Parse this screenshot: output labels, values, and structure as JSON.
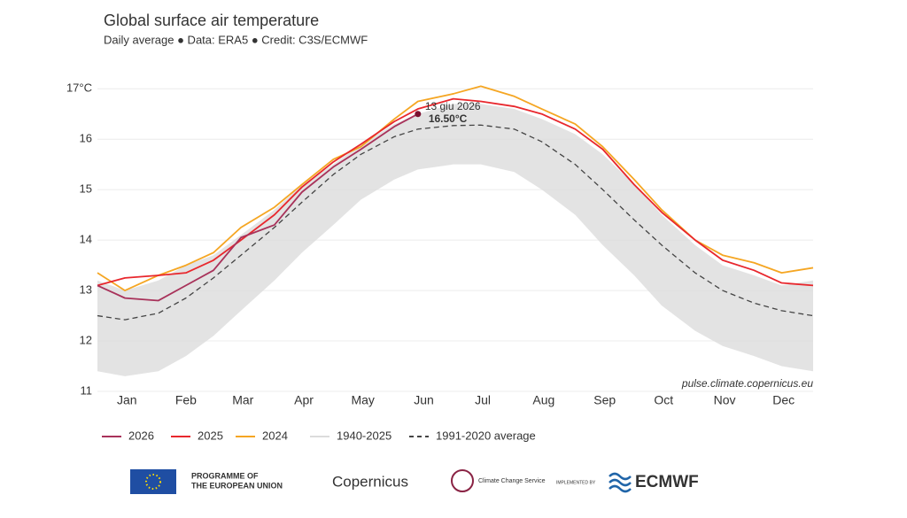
{
  "chart_data": {
    "type": "line",
    "title": "Global surface air temperature",
    "subtitle": "Daily average ● Data: ERA5 ● Credit: C3S/ECMWF",
    "source": "pulse.climate.copernicus.eu",
    "x": [
      1,
      15,
      32,
      46,
      60,
      74,
      91,
      105,
      121,
      135,
      152,
      164,
      182,
      196,
      213,
      227,
      244,
      258,
      274,
      288,
      305,
      319,
      335,
      349,
      365
    ],
    "xlim": [
      1,
      365
    ],
    "xticks": [
      {
        "value": 16,
        "label": "Jan"
      },
      {
        "value": 46,
        "label": "Feb"
      },
      {
        "value": 75,
        "label": "Mar"
      },
      {
        "value": 106,
        "label": "Apr"
      },
      {
        "value": 136,
        "label": "May"
      },
      {
        "value": 167,
        "label": "Jun"
      },
      {
        "value": 197,
        "label": "Jul"
      },
      {
        "value": 228,
        "label": "Aug"
      },
      {
        "value": 259,
        "label": "Sep"
      },
      {
        "value": 289,
        "label": "Oct"
      },
      {
        "value": 320,
        "label": "Nov"
      },
      {
        "value": 350,
        "label": "Dec"
      }
    ],
    "ylim": [
      11,
      17.25
    ],
    "yticks": [
      {
        "value": 17,
        "label": "17°C"
      },
      16,
      15,
      14,
      13,
      12,
      11
    ],
    "grid": true,
    "series": [
      {
        "name": "2026",
        "color": "#a8325a",
        "values": [
          13.1,
          12.85,
          12.8,
          13.1,
          13.4,
          14.05,
          14.3,
          14.95,
          15.45,
          15.8,
          16.25,
          16.5,
          null,
          null,
          null,
          null,
          null,
          null,
          null,
          null,
          null,
          null,
          null,
          null,
          null
        ]
      },
      {
        "name": "2025",
        "color": "#e8272d",
        "values": [
          13.1,
          13.25,
          13.3,
          13.35,
          13.6,
          14.0,
          14.5,
          15.05,
          15.55,
          15.9,
          16.35,
          16.6,
          16.8,
          16.75,
          16.65,
          16.5,
          16.2,
          15.8,
          15.1,
          14.55,
          14.0,
          13.6,
          13.4,
          13.15,
          13.1
        ]
      },
      {
        "name": "2024",
        "color": "#f5a623",
        "values": [
          13.35,
          13.0,
          13.3,
          13.5,
          13.75,
          14.25,
          14.65,
          15.1,
          15.6,
          15.85,
          16.4,
          16.75,
          16.9,
          17.05,
          16.85,
          16.6,
          16.3,
          15.85,
          15.2,
          14.6,
          14.0,
          13.7,
          13.55,
          13.35,
          13.45
        ]
      },
      {
        "name": "1940-2025",
        "color": "#dcdcdc",
        "low": [
          11.4,
          11.3,
          11.4,
          11.7,
          12.1,
          12.6,
          13.2,
          13.75,
          14.3,
          14.8,
          15.2,
          15.4,
          15.5,
          15.5,
          15.35,
          15.0,
          14.5,
          13.9,
          13.3,
          12.7,
          12.2,
          11.9,
          11.7,
          11.5,
          11.4
        ],
        "high": [
          13.2,
          13.0,
          13.2,
          13.5,
          13.7,
          14.1,
          14.6,
          15.1,
          15.5,
          15.9,
          16.3,
          16.5,
          16.7,
          16.7,
          16.6,
          16.4,
          16.1,
          15.7,
          15.1,
          14.5,
          13.9,
          13.5,
          13.3,
          13.1,
          13.2
        ]
      },
      {
        "name": "1991-2020 average",
        "color": "#444444",
        "dashed": true,
        "values": [
          12.5,
          12.42,
          12.55,
          12.85,
          13.25,
          13.7,
          14.25,
          14.75,
          15.3,
          15.7,
          16.05,
          16.2,
          16.27,
          16.28,
          16.2,
          15.95,
          15.5,
          15.0,
          14.4,
          13.9,
          13.35,
          13.0,
          12.75,
          12.6,
          12.5
        ]
      }
    ],
    "annotation": {
      "text": "13 giu 2026",
      "x": 164,
      "value": 16.5,
      "value_label": "16.50°C",
      "color": "#7a1030"
    }
  },
  "footer": {
    "eu": [
      "PROGRAMME OF",
      "THE EUROPEAN UNION"
    ],
    "copernicus": "Copernicus",
    "c3s": "Climate Change Service",
    "implemented": "IMPLEMENTED BY",
    "ecmwf": "ECMWF"
  }
}
